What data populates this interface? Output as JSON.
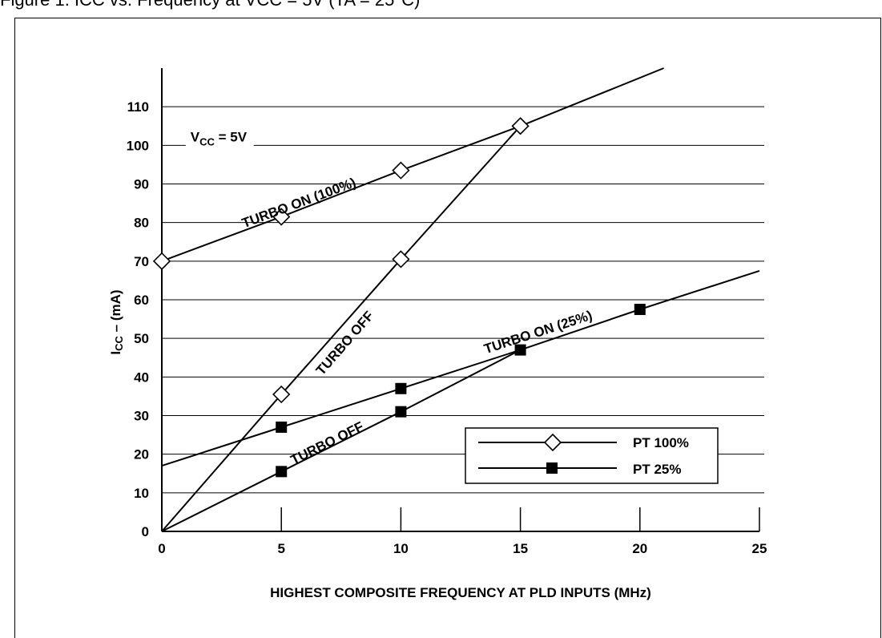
{
  "caption": "Figure 1. ICC vs. Frequency at VCC = 5V (TA = 25°C)",
  "chart_data": {
    "type": "line",
    "xlabel": "HIGHEST COMPOSITE FREQUENCY AT PLD INPUTS (MHz)",
    "ylabel_main": "I",
    "ylabel_sub": "CC",
    "ylabel_rest": " – (mA)",
    "xlim": [
      0,
      25
    ],
    "ylim": [
      0,
      120
    ],
    "x_ticks": [
      0,
      5,
      10,
      15,
      20,
      25
    ],
    "y_ticks": [
      0,
      10,
      20,
      30,
      40,
      50,
      60,
      70,
      80,
      90,
      100,
      110
    ],
    "grid": "horizontal",
    "series": [
      {
        "name": "TURBO ON (100%)",
        "marker": "diamond",
        "x": [
          0,
          5,
          10,
          15,
          21
        ],
        "y": [
          70,
          81.5,
          93.5,
          105,
          120
        ],
        "marker_x": [
          0,
          5,
          10,
          15
        ],
        "marker_y": [
          70,
          81.5,
          93.5,
          105
        ]
      },
      {
        "name": "TURBO OFF",
        "marker": "diamond",
        "x": [
          0,
          5,
          10,
          15
        ],
        "y": [
          0,
          35.5,
          70.5,
          105
        ],
        "marker_x": [
          5,
          10
        ],
        "marker_y": [
          35.5,
          70.5
        ]
      },
      {
        "name": "TURBO ON (25%)",
        "marker": "square",
        "x": [
          0,
          5,
          10,
          15,
          20,
          25
        ],
        "y": [
          17,
          27,
          37,
          47,
          57.5,
          67.5
        ],
        "marker_x": [
          5,
          10,
          15,
          20
        ],
        "marker_y": [
          27,
          37,
          47,
          57.5
        ]
      },
      {
        "name": "TURBO OFF",
        "marker": "square",
        "x": [
          0,
          5,
          10,
          15
        ],
        "y": [
          0,
          15.5,
          31,
          47
        ],
        "marker_x": [
          5,
          10
        ],
        "marker_y": [
          15.5,
          31
        ]
      }
    ],
    "annotations": [
      {
        "text": "TURBO  ON (100%)",
        "x": 5.8,
        "y": 84
      },
      {
        "text": "TURBO OFF",
        "x": 7.8,
        "y": 48
      },
      {
        "text": "TURBO  ON (25%)",
        "x": 15.8,
        "y": 50.5
      },
      {
        "text": "TURBO  OFF",
        "x": 7.0,
        "y": 21.8
      }
    ],
    "vcc_label": {
      "main": "V",
      "sub": "CC",
      "rest": " = 5V",
      "x": 1.2,
      "y": 101
    },
    "legend": {
      "placement": "inside lower-right",
      "items": [
        {
          "label": "PT 100%",
          "marker": "diamond"
        },
        {
          "label": "PT 25%",
          "marker": "square"
        }
      ]
    }
  }
}
